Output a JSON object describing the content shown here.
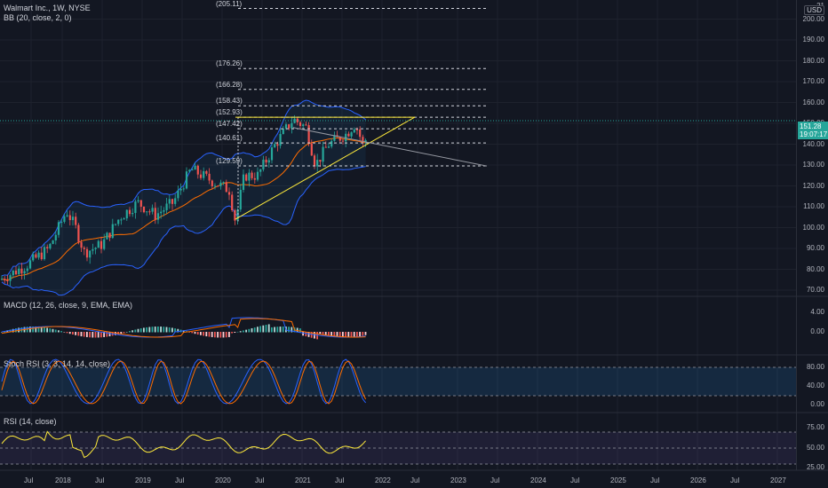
{
  "header": {
    "symbol_line": "Walmart Inc., 1W, NYSE",
    "indicator_bb": "BB (20, close, 2, 0)",
    "currency": "USD"
  },
  "price_scale": {
    "ticks": [
      "200.00",
      "190.00",
      "180.00",
      "170.00",
      "160.00",
      "150.00",
      "140.00",
      "130.00",
      "120.00",
      "110.00",
      "100.00",
      "90.00",
      "80.00",
      "70.00"
    ],
    "top_partial": "21"
  },
  "current_price": {
    "value": "151.28",
    "countdown": "19:07:17",
    "color": "#26a69a"
  },
  "fib_levels": [
    "(205.11)",
    "(176.26)",
    "(166.28)",
    "(158.43)",
    "(152.93)",
    "(147.42)",
    "(140.61)",
    "(129.59)"
  ],
  "macd": {
    "label": "MACD (12, 26, close, 9, EMA, EMA)",
    "ticks": [
      "4.00",
      "0.00"
    ]
  },
  "stoch": {
    "label": "Stoch RSI (3, 3, 14, 14, close)",
    "ticks": [
      "80.00",
      "40.00",
      "0.00"
    ]
  },
  "rsi": {
    "label": "RSI (14, close)",
    "ticks": [
      "75.00",
      "50.00",
      "25.00"
    ]
  },
  "time_axis": [
    "Jul",
    "2018",
    "Jul",
    "2019",
    "Jul",
    "2020",
    "Jul",
    "2021",
    "Jul",
    "2022",
    "Jul",
    "2023",
    "Jul",
    "2024",
    "Jul",
    "2025",
    "Jul",
    "2026",
    "Jul",
    "2027"
  ],
  "colors": {
    "bull": "#26a69a",
    "bear": "#ef5350",
    "band": "#2962ff",
    "basis": "#ff6d00",
    "trend": "#ffeb3b",
    "rsi": "#ffeb3b",
    "stoch_k": "#2962ff",
    "stoch_d": "#ff6d00"
  }
}
